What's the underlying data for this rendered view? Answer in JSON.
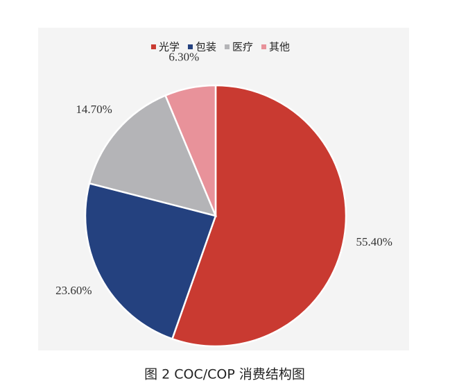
{
  "chart_data": {
    "type": "pie",
    "caption": "图 2  COC/COP 消费结构图",
    "categories": [
      "光学",
      "包装",
      "医疗",
      "其他"
    ],
    "values": [
      55.4,
      23.6,
      14.7,
      6.3
    ],
    "value_labels": [
      "55.40%",
      "23.60%",
      "14.70%",
      "6.30%"
    ],
    "colors": [
      "#c93a31",
      "#24417f",
      "#b4b4b7",
      "#e8929a"
    ],
    "legend": "top"
  }
}
